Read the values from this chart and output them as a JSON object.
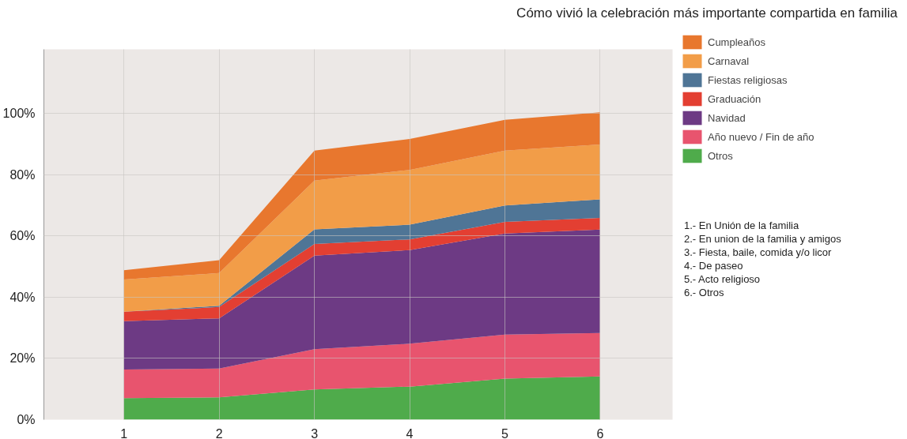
{
  "chart_data": {
    "type": "area",
    "stacked": true,
    "title": "Cómo vivió la celebración más importante compartida en familia",
    "x": [
      1,
      2,
      3,
      4,
      5,
      6
    ],
    "series": [
      {
        "name": "Otros",
        "color": "#4fab4b",
        "values": [
          7.0,
          7.3,
          9.9,
          10.8,
          13.4,
          14.1
        ]
      },
      {
        "name": "Año nuevo / Fin de año",
        "color": "#e8546e",
        "values": [
          9.4,
          9.4,
          13.1,
          14.0,
          14.4,
          14.2
        ]
      },
      {
        "name": "Navidad",
        "color": "#6d3a84",
        "values": [
          15.8,
          16.4,
          30.6,
          30.6,
          33.0,
          33.8
        ]
      },
      {
        "name": "Graduación",
        "color": "#e33f32",
        "values": [
          3.1,
          3.7,
          3.8,
          3.5,
          3.8,
          3.8
        ]
      },
      {
        "name": "Fiestas religiosas",
        "color": "#4f7596",
        "values": [
          0,
          0.4,
          4.8,
          4.8,
          5.4,
          6.1
        ]
      },
      {
        "name": "Carnaval",
        "color": "#f29d48",
        "values": [
          10.5,
          10.7,
          15.9,
          17.9,
          17.9,
          17.9
        ]
      },
      {
        "name": "Cumpleaños",
        "color": "#e8772e",
        "values": [
          3.0,
          4.2,
          9.8,
          10.1,
          10.1,
          10.5
        ]
      }
    ],
    "xlim": [
      0.16,
      6.76
    ],
    "ylim": [
      0,
      121
    ],
    "xticks": [
      1,
      2,
      3,
      4,
      5,
      6
    ],
    "yticks": [
      {
        "value": 0,
        "label": "0%"
      },
      {
        "value": 20,
        "label": "20%"
      },
      {
        "value": 40,
        "label": "40%"
      },
      {
        "value": 60,
        "label": "60%"
      },
      {
        "value": 80,
        "label": "80%"
      },
      {
        "value": 100,
        "label": "100%"
      }
    ],
    "grid": true,
    "legend": "top right",
    "annotations": [
      "1.- En Unión de la familia",
      "2.- En union de la familia y amigos",
      "3.- Fiesta, baile, comida y/o licor",
      "4.- De paseo",
      "5.- Acto religioso",
      "6.- Otros"
    ]
  }
}
